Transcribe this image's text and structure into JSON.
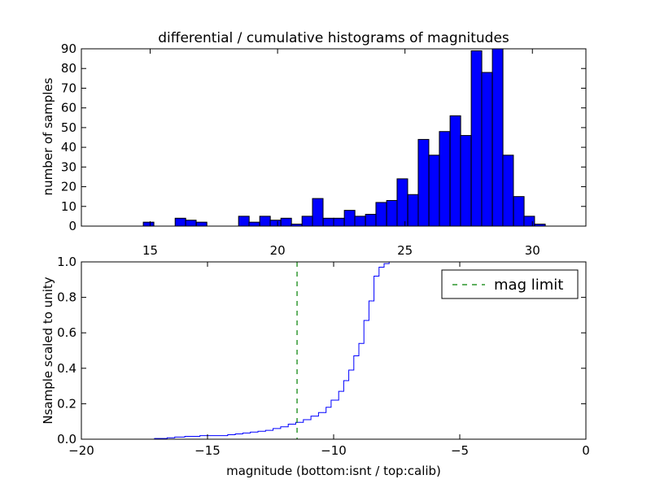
{
  "chart_data": [
    {
      "type": "bar",
      "title": "differential / cumulative histograms of magnitudes",
      "xlabel": "",
      "ylabel": "number of samples",
      "xlim": [
        12.3,
        32.1
      ],
      "ylim": [
        0,
        90
      ],
      "bin_width": 0.415,
      "xticks": [
        15,
        20,
        25,
        30
      ],
      "yticks": [
        0,
        10,
        20,
        30,
        40,
        50,
        60,
        70,
        80,
        90
      ],
      "bins": [
        {
          "x": 14.73,
          "value": 2
        },
        {
          "x": 15.98,
          "value": 4
        },
        {
          "x": 16.39,
          "value": 3
        },
        {
          "x": 16.81,
          "value": 2
        },
        {
          "x": 18.47,
          "value": 5
        },
        {
          "x": 18.88,
          "value": 2
        },
        {
          "x": 19.3,
          "value": 5
        },
        {
          "x": 19.71,
          "value": 3
        },
        {
          "x": 20.13,
          "value": 4
        },
        {
          "x": 20.54,
          "value": 1
        },
        {
          "x": 20.96,
          "value": 5
        },
        {
          "x": 21.37,
          "value": 14
        },
        {
          "x": 21.79,
          "value": 4
        },
        {
          "x": 22.2,
          "value": 4
        },
        {
          "x": 22.62,
          "value": 8
        },
        {
          "x": 23.03,
          "value": 5
        },
        {
          "x": 23.45,
          "value": 6
        },
        {
          "x": 23.86,
          "value": 12
        },
        {
          "x": 24.28,
          "value": 13
        },
        {
          "x": 24.69,
          "value": 24
        },
        {
          "x": 25.11,
          "value": 16
        },
        {
          "x": 25.52,
          "value": 44
        },
        {
          "x": 25.94,
          "value": 36
        },
        {
          "x": 26.35,
          "value": 48
        },
        {
          "x": 26.77,
          "value": 56
        },
        {
          "x": 27.18,
          "value": 46
        },
        {
          "x": 27.6,
          "value": 89
        },
        {
          "x": 28.01,
          "value": 78
        },
        {
          "x": 28.43,
          "value": 90
        },
        {
          "x": 28.84,
          "value": 36
        },
        {
          "x": 29.26,
          "value": 15
        },
        {
          "x": 29.67,
          "value": 5
        },
        {
          "x": 30.09,
          "value": 1
        }
      ],
      "colors": {
        "bar_fill": "#0000ff",
        "bar_edge": "#000000"
      }
    },
    {
      "type": "line",
      "title": "",
      "xlabel": "magnitude (bottom:isnt / top:calib)",
      "ylabel": "Nsample scaled to unity",
      "xlim": [
        -20,
        0
      ],
      "ylim": [
        0,
        1
      ],
      "xticks": [
        -20,
        -15,
        -10,
        -5,
        0
      ],
      "yticks": [
        0.0,
        0.2,
        0.4,
        0.6,
        0.8,
        1.0
      ],
      "xtick_labels": [
        "−20",
        "−15",
        "−10",
        "−5",
        "0"
      ],
      "ytick_labels": [
        "0.0",
        "0.2",
        "0.4",
        "0.6",
        "0.8",
        "1.0"
      ],
      "series": [
        {
          "style": "step",
          "color": "#0000ff",
          "points": [
            [
              -20.0,
              0.0
            ],
            [
              -17.1,
              0.004
            ],
            [
              -16.6,
              0.008
            ],
            [
              -16.3,
              0.012
            ],
            [
              -15.9,
              0.016
            ],
            [
              -15.3,
              0.02
            ],
            [
              -14.2,
              0.025
            ],
            [
              -13.9,
              0.03
            ],
            [
              -13.6,
              0.035
            ],
            [
              -13.3,
              0.04
            ],
            [
              -13.0,
              0.045
            ],
            [
              -12.7,
              0.05
            ],
            [
              -12.4,
              0.06
            ],
            [
              -12.1,
              0.07
            ],
            [
              -11.8,
              0.085
            ],
            [
              -11.5,
              0.095
            ],
            [
              -11.2,
              0.11
            ],
            [
              -10.9,
              0.13
            ],
            [
              -10.6,
              0.15
            ],
            [
              -10.3,
              0.18
            ],
            [
              -10.1,
              0.22
            ],
            [
              -9.8,
              0.27
            ],
            [
              -9.6,
              0.33
            ],
            [
              -9.4,
              0.39
            ],
            [
              -9.2,
              0.47
            ],
            [
              -9.0,
              0.54
            ],
            [
              -8.8,
              0.67
            ],
            [
              -8.6,
              0.78
            ],
            [
              -8.4,
              0.92
            ],
            [
              -8.2,
              0.97
            ],
            [
              -8.0,
              0.99
            ],
            [
              -7.8,
              1.0
            ],
            [
              0.0,
              1.0
            ]
          ]
        },
        {
          "name": "mag limit",
          "style": "dashed",
          "color": "#008000",
          "x": -11.45
        }
      ],
      "legend": {
        "label": "mag limit",
        "placement": "top-right"
      }
    }
  ]
}
